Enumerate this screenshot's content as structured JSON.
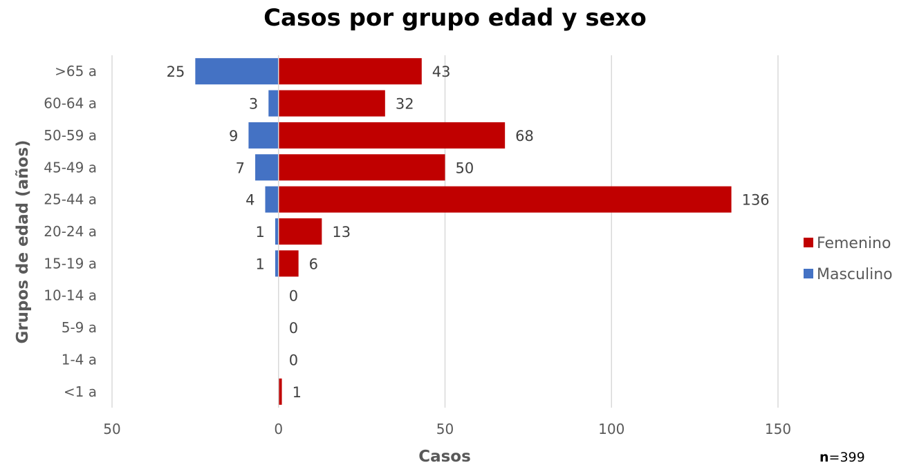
{
  "chart_data": {
    "type": "bar",
    "orientation": "horizontal",
    "title": "Casos por grupo edad y sexo",
    "xlabel": "Casos",
    "ylabel": "Grupos de edad (años)",
    "categories": [
      ">65 a",
      "60-64 a",
      "50-59 a",
      "45-49 a",
      "25-44 a",
      "20-24 a",
      "15-19 a",
      "10-14 a",
      "5-9 a",
      "1-4 a",
      "<1 a"
    ],
    "series": [
      {
        "name": "Femenino",
        "color": "#C00000",
        "values": [
          43,
          32,
          68,
          50,
          136,
          13,
          6,
          0,
          0,
          0,
          1
        ],
        "labels": [
          "43",
          "32",
          "68",
          "50",
          "136",
          "13",
          "6",
          "0",
          "0",
          "0",
          "1"
        ]
      },
      {
        "name": "Masculino",
        "color": "#4472C4",
        "values": [
          -25,
          -3,
          -9,
          -7,
          -4,
          -1,
          -1,
          0,
          0,
          0,
          0
        ],
        "labels": [
          "25",
          "3",
          "9",
          "7",
          "4",
          "1",
          "1",
          "",
          "",
          "",
          ""
        ]
      }
    ],
    "xlim": [
      -50,
      150
    ],
    "xticks": [
      -50,
      0,
      50,
      100,
      150
    ],
    "xtick_labels": [
      "50",
      "0",
      "50",
      "100",
      "150"
    ],
    "grid": true,
    "legend_position": "right",
    "annotation": {
      "label": "n",
      "value": "=399"
    }
  }
}
